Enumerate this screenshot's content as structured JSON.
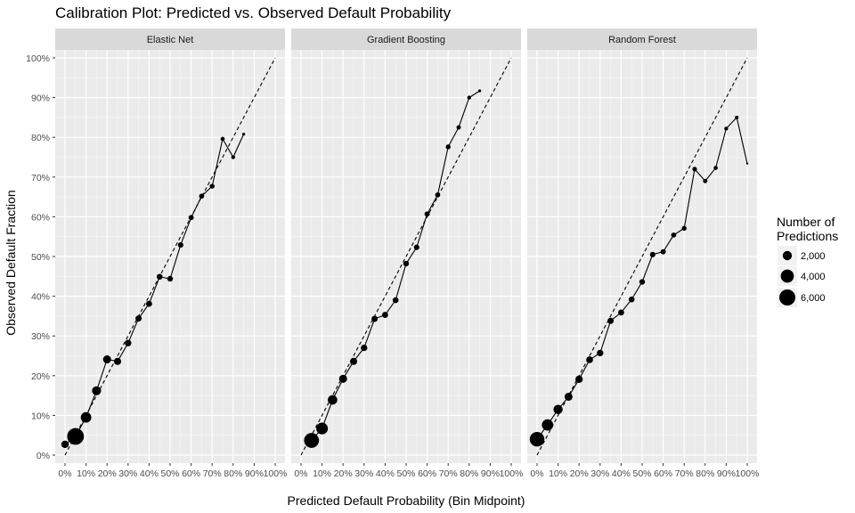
{
  "chart_data": {
    "type": "line",
    "title": "Calibration Plot: Predicted vs. Observed Default Probability",
    "xlabel": "Predicted Default Probability (Bin Midpoint)",
    "ylabel": "Observed Default Fraction",
    "xlim": [
      0,
      1
    ],
    "ylim": [
      0,
      1
    ],
    "grid": true,
    "x_ticks": [
      0,
      0.1,
      0.2,
      0.3,
      0.4,
      0.5,
      0.6,
      0.7,
      0.8,
      0.9,
      1.0
    ],
    "x_tick_labels": [
      "0%",
      "10%",
      "20%",
      "30%",
      "40%",
      "50%",
      "60%",
      "70%",
      "80%",
      "90%",
      "100%"
    ],
    "y_ticks": [
      0,
      0.1,
      0.2,
      0.3,
      0.4,
      0.5,
      0.6,
      0.7,
      0.8,
      0.9,
      1.0
    ],
    "y_tick_labels": [
      "0%",
      "10%",
      "20%",
      "30%",
      "40%",
      "50%",
      "60%",
      "70%",
      "80%",
      "90%",
      "100%"
    ],
    "reference_line": {
      "style": "dashed",
      "x": [
        0,
        1
      ],
      "y": [
        0,
        1
      ]
    },
    "legend": {
      "title_lines": [
        "Number of",
        "Predictions"
      ],
      "placement": "right",
      "entries": [
        {
          "label": "2,000",
          "value": 2000
        },
        {
          "label": "4,000",
          "value": 4000
        },
        {
          "label": "6,000",
          "value": 6000
        }
      ]
    },
    "panels": [
      {
        "name": "Elastic Net",
        "points": [
          {
            "x": 0.0,
            "y": 0.027,
            "n": 1300
          },
          {
            "x": 0.05,
            "y": 0.047,
            "n": 6500
          },
          {
            "x": 0.1,
            "y": 0.095,
            "n": 2600
          },
          {
            "x": 0.15,
            "y": 0.162,
            "n": 1900
          },
          {
            "x": 0.2,
            "y": 0.241,
            "n": 1500
          },
          {
            "x": 0.25,
            "y": 0.236,
            "n": 1200
          },
          {
            "x": 0.3,
            "y": 0.282,
            "n": 1000
          },
          {
            "x": 0.35,
            "y": 0.344,
            "n": 900
          },
          {
            "x": 0.4,
            "y": 0.381,
            "n": 850
          },
          {
            "x": 0.45,
            "y": 0.449,
            "n": 800
          },
          {
            "x": 0.5,
            "y": 0.444,
            "n": 750
          },
          {
            "x": 0.55,
            "y": 0.529,
            "n": 700
          },
          {
            "x": 0.6,
            "y": 0.598,
            "n": 650
          },
          {
            "x": 0.65,
            "y": 0.652,
            "n": 600
          },
          {
            "x": 0.7,
            "y": 0.677,
            "n": 550
          },
          {
            "x": 0.75,
            "y": 0.796,
            "n": 400
          },
          {
            "x": 0.8,
            "y": 0.75,
            "n": 350
          },
          {
            "x": 0.85,
            "y": 0.808,
            "n": 200
          }
        ]
      },
      {
        "name": "Gradient Boosting",
        "points": [
          {
            "x": 0.05,
            "y": 0.037,
            "n": 5200
          },
          {
            "x": 0.1,
            "y": 0.067,
            "n": 3200
          },
          {
            "x": 0.15,
            "y": 0.139,
            "n": 2100
          },
          {
            "x": 0.2,
            "y": 0.192,
            "n": 1500
          },
          {
            "x": 0.25,
            "y": 0.236,
            "n": 1200
          },
          {
            "x": 0.3,
            "y": 0.27,
            "n": 1000
          },
          {
            "x": 0.35,
            "y": 0.343,
            "n": 900
          },
          {
            "x": 0.4,
            "y": 0.353,
            "n": 850
          },
          {
            "x": 0.45,
            "y": 0.39,
            "n": 800
          },
          {
            "x": 0.5,
            "y": 0.482,
            "n": 750
          },
          {
            "x": 0.55,
            "y": 0.523,
            "n": 700
          },
          {
            "x": 0.6,
            "y": 0.607,
            "n": 650
          },
          {
            "x": 0.65,
            "y": 0.655,
            "n": 600
          },
          {
            "x": 0.7,
            "y": 0.776,
            "n": 550
          },
          {
            "x": 0.75,
            "y": 0.825,
            "n": 450
          },
          {
            "x": 0.8,
            "y": 0.9,
            "n": 350
          },
          {
            "x": 0.85,
            "y": 0.917,
            "n": 200
          }
        ]
      },
      {
        "name": "Random Forest",
        "points": [
          {
            "x": 0.0,
            "y": 0.04,
            "n": 5000
          },
          {
            "x": 0.05,
            "y": 0.076,
            "n": 3000
          },
          {
            "x": 0.1,
            "y": 0.115,
            "n": 2000
          },
          {
            "x": 0.15,
            "y": 0.147,
            "n": 1500
          },
          {
            "x": 0.2,
            "y": 0.191,
            "n": 1300
          },
          {
            "x": 0.25,
            "y": 0.24,
            "n": 1100
          },
          {
            "x": 0.3,
            "y": 0.257,
            "n": 1000
          },
          {
            "x": 0.35,
            "y": 0.338,
            "n": 900
          },
          {
            "x": 0.4,
            "y": 0.359,
            "n": 850
          },
          {
            "x": 0.45,
            "y": 0.392,
            "n": 800
          },
          {
            "x": 0.5,
            "y": 0.436,
            "n": 750
          },
          {
            "x": 0.55,
            "y": 0.505,
            "n": 700
          },
          {
            "x": 0.6,
            "y": 0.512,
            "n": 650
          },
          {
            "x": 0.65,
            "y": 0.554,
            "n": 600
          },
          {
            "x": 0.7,
            "y": 0.571,
            "n": 550
          },
          {
            "x": 0.75,
            "y": 0.72,
            "n": 500
          },
          {
            "x": 0.8,
            "y": 0.69,
            "n": 450
          },
          {
            "x": 0.85,
            "y": 0.723,
            "n": 400
          },
          {
            "x": 0.9,
            "y": 0.822,
            "n": 350
          },
          {
            "x": 0.95,
            "y": 0.85,
            "n": 300
          },
          {
            "x": 1.0,
            "y": 0.734,
            "n": 100
          }
        ]
      }
    ]
  }
}
